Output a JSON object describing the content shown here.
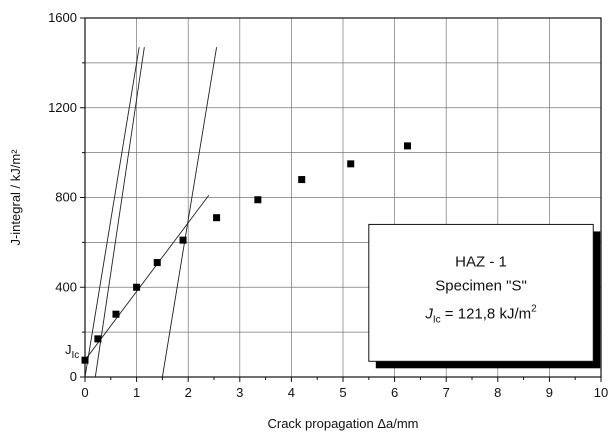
{
  "chart_data": {
    "type": "scatter",
    "xlabel": "Crack propagation  Δa/mm",
    "ylabel": "J-integral / kJ/m²",
    "xlim": [
      0,
      10
    ],
    "ylim": [
      0,
      1600
    ],
    "x_ticks": [
      "0",
      "1",
      "2",
      "3",
      "4",
      "5",
      "6",
      "7",
      "8",
      "9",
      "10"
    ],
    "y_ticks": [
      "0",
      "400",
      "800",
      "1200",
      "1600"
    ],
    "grid": true,
    "points": [
      {
        "x": 0.0,
        "y": 75
      },
      {
        "x": 0.25,
        "y": 170
      },
      {
        "x": 0.6,
        "y": 280
      },
      {
        "x": 1.0,
        "y": 400
      },
      {
        "x": 1.4,
        "y": 510
      },
      {
        "x": 1.9,
        "y": 610
      },
      {
        "x": 2.55,
        "y": 710
      },
      {
        "x": 3.35,
        "y": 790
      },
      {
        "x": 4.2,
        "y": 880
      },
      {
        "x": 5.15,
        "y": 950
      },
      {
        "x": 6.25,
        "y": 1030
      }
    ],
    "lines": [
      {
        "x1": 0.0,
        "y1": 0,
        "x2": 1.05,
        "y2": 1470
      },
      {
        "x1": 0.2,
        "y1": 0,
        "x2": 1.15,
        "y2": 1470
      },
      {
        "x1": 1.5,
        "y1": 0,
        "x2": 2.55,
        "y2": 1470
      },
      {
        "x1": 0.0,
        "y1": 75,
        "x2": 2.4,
        "y2": 810
      }
    ],
    "jic_label": "J",
    "jic_sub": "Ic",
    "annotation": {
      "line1": "HAZ - 1",
      "line2": "Specimen \"S\"",
      "line3_j": "J",
      "line3_sub": "Ic",
      "line3_value": " = 121,8 kJ/m",
      "line3_sup": "2"
    }
  }
}
